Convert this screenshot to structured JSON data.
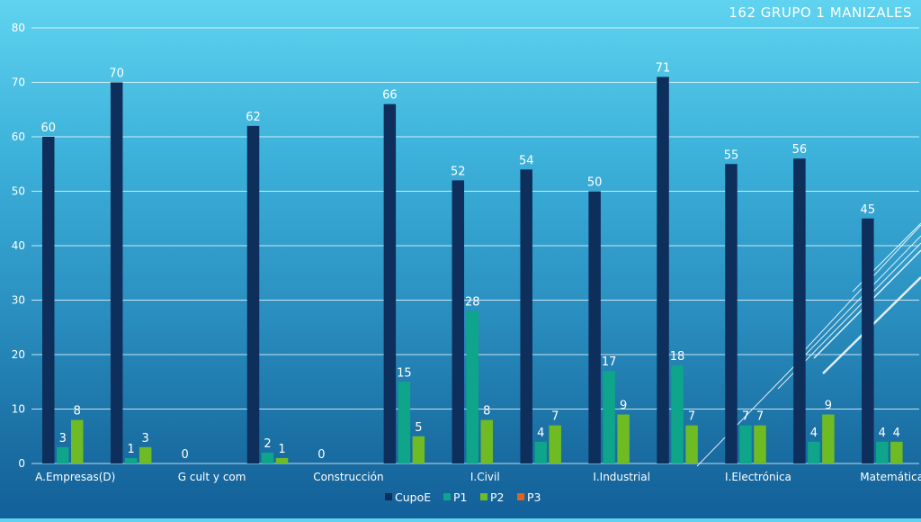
{
  "chart_data": {
    "type": "bar",
    "title": "162  GRUPO 1  MANIZALES",
    "xlabel": "",
    "ylabel": "",
    "ylim": [
      0,
      80
    ],
    "yticks": [
      0,
      10,
      20,
      30,
      40,
      50,
      60,
      70,
      80
    ],
    "grid": true,
    "legend_position": "bottom",
    "categories": [
      "A.Empresas(D)",
      "",
      "G cult y com",
      "",
      "Construcción",
      "",
      "I.Civil",
      "",
      "I.Industrial",
      "",
      "I.Electrónica",
      "",
      "Matemáticas"
    ],
    "series": [
      {
        "name": "CupoE",
        "color": "#0e2f5c",
        "values": [
          60,
          70,
          0,
          62,
          0,
          66,
          52,
          54,
          50,
          71,
          55,
          56,
          45
        ],
        "labels": [
          "60",
          "70",
          "0",
          "62",
          "0",
          "66",
          "52",
          "54",
          "50",
          "71",
          "55",
          "56",
          "45"
        ]
      },
      {
        "name": "P1",
        "color": "#0ea58a",
        "values": [
          3,
          1,
          null,
          2,
          null,
          15,
          28,
          4,
          17,
          18,
          7,
          4,
          4
        ],
        "labels": [
          "3",
          "1",
          "",
          "2",
          "",
          "15",
          "28",
          "4",
          "17",
          "18",
          "7",
          "4",
          "4"
        ]
      },
      {
        "name": "P2",
        "color": "#6fbb24",
        "values": [
          8,
          3,
          null,
          1,
          null,
          5,
          8,
          7,
          9,
          7,
          7,
          9,
          4
        ],
        "labels": [
          "8",
          "3",
          "",
          "1",
          "",
          "5",
          "8",
          "7",
          "9",
          "7",
          "7",
          "9",
          "4"
        ]
      },
      {
        "name": "P3",
        "color": "#e0641c",
        "values": [
          null,
          null,
          null,
          null,
          null,
          null,
          null,
          null,
          null,
          null,
          null,
          null,
          null
        ],
        "labels": [
          "",
          "",
          "",
          "",
          "",
          "",
          "",
          "",
          "",
          "",
          "",
          "",
          ""
        ]
      }
    ]
  }
}
